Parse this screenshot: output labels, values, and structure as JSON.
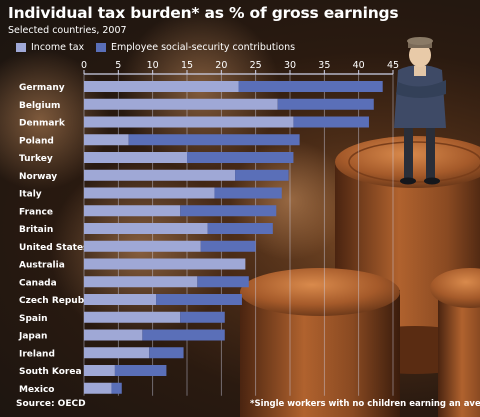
{
  "header": {
    "title": "Individual tax burden* as % of gross earnings",
    "subtitle": "Selected countries, 2007"
  },
  "footer": {
    "source": "Source: OECD",
    "footnote": "*Single workers with no children earning an average income"
  },
  "colors": {
    "income_tax": "#9fa8d6",
    "social_security": "#5a6fb8",
    "axis_line": "#cfd3ea"
  },
  "chart_data": {
    "type": "bar",
    "orientation": "horizontal",
    "stacked": true,
    "title": "Individual tax burden* as % of gross earnings",
    "subtitle": "Selected countries, 2007",
    "xlim": [
      0,
      45
    ],
    "xticks": [
      0,
      5,
      10,
      15,
      20,
      25,
      30,
      35,
      40,
      45
    ],
    "grid": true,
    "legend_position": "top-left",
    "categories": [
      "Germany",
      "Belgium",
      "Denmark",
      "Poland",
      "Turkey",
      "Norway",
      "Italy",
      "France",
      "Britain",
      "United States",
      "Australia",
      "Canada",
      "Czech Republic",
      "Spain",
      "Japan",
      "Ireland",
      "South Korea",
      "Mexico"
    ],
    "series": [
      {
        "name": "Income tax",
        "values": [
          22.5,
          28.2,
          30.5,
          6.5,
          15.0,
          22.0,
          19.0,
          14.0,
          18.0,
          17.0,
          23.5,
          16.5,
          10.5,
          14.0,
          8.5,
          9.5,
          4.5,
          4.0
        ]
      },
      {
        "name": "Employee social-security contributions",
        "values": [
          21.0,
          14.0,
          11.0,
          24.9,
          15.5,
          7.8,
          9.8,
          14.0,
          9.5,
          8.0,
          0.0,
          7.5,
          12.5,
          6.5,
          12.0,
          5.0,
          7.5,
          1.5
        ]
      }
    ]
  }
}
